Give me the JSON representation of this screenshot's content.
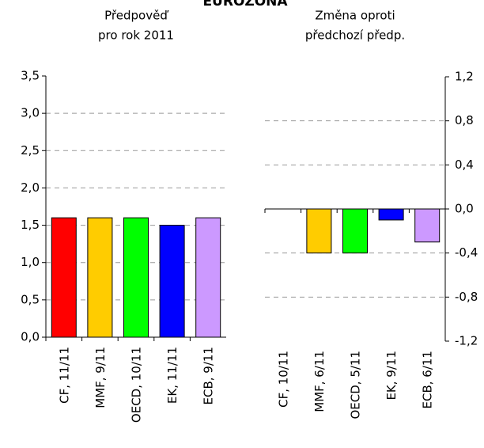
{
  "title": "EUROZÓNA",
  "chart_data": [
    {
      "type": "bar",
      "subtitle": [
        "Předpověď",
        "pro rok 2011"
      ],
      "categories": [
        "CF, 11/11",
        "MMF, 9/11",
        "OECD, 10/11",
        "EK, 11/11",
        "ECB, 9/11"
      ],
      "values": [
        1.6,
        1.6,
        1.6,
        1.5,
        1.6
      ],
      "colors": [
        "#ff0000",
        "#ffcc00",
        "#00ff00",
        "#0000ff",
        "#cc99ff"
      ],
      "ylim": [
        0,
        3.5
      ],
      "yticks": [
        {
          "value": 0,
          "label": "0,0"
        },
        {
          "value": 0.5,
          "label": "0,5"
        },
        {
          "value": 1,
          "label": "1,0"
        },
        {
          "value": 1.5,
          "label": "1,5"
        },
        {
          "value": 2,
          "label": "2,0"
        },
        {
          "value": 2.5,
          "label": "2,5"
        },
        {
          "value": 3,
          "label": "3,0"
        },
        {
          "value": 3.5,
          "label": "3,5"
        }
      ],
      "yaxis_position": "left",
      "grid": true
    },
    {
      "type": "bar",
      "subtitle": [
        "Změna oproti",
        "předchozí předp."
      ],
      "categories": [
        "CF, 10/11",
        "MMF, 6/11",
        "OECD, 5/11",
        "EK, 9/11",
        "ECB, 6/11"
      ],
      "values": [
        0,
        -0.4,
        -0.4,
        -0.1,
        -0.3
      ],
      "colors": [
        "#ff0000",
        "#ffcc00",
        "#00ff00",
        "#0000ff",
        "#cc99ff"
      ],
      "ylim": [
        -1.2,
        1.2
      ],
      "yticks": [
        {
          "value": -1.2,
          "label": "-1,2"
        },
        {
          "value": -0.8,
          "label": "-0,8"
        },
        {
          "value": -0.4,
          "label": "-0,4"
        },
        {
          "value": 0,
          "label": "0,0"
        },
        {
          "value": 0.4,
          "label": "0,4"
        },
        {
          "value": 0.8,
          "label": "0,8"
        },
        {
          "value": 1.2,
          "label": "1,2"
        }
      ],
      "yaxis_position": "right",
      "grid": true
    }
  ]
}
